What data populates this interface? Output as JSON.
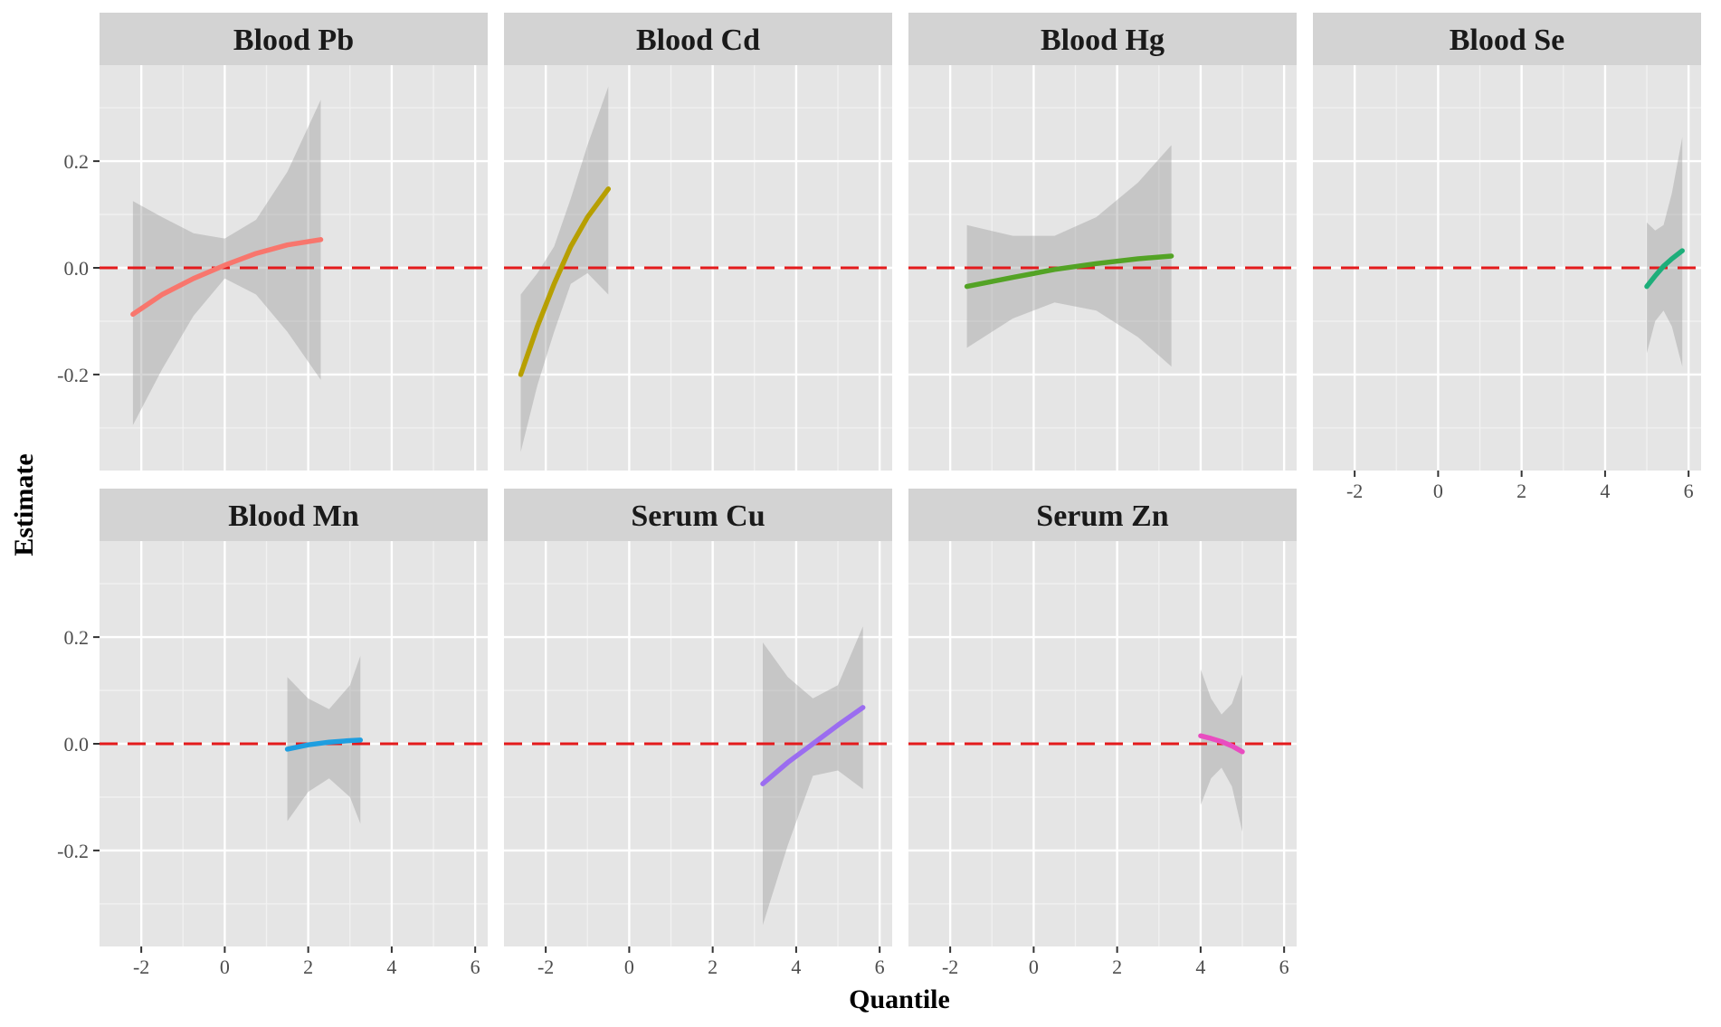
{
  "chart_data": {
    "type": "line",
    "layout": "facet-grid",
    "xlabel": "Quantile",
    "ylabel": "Estimate",
    "xlim": [
      -3,
      6.3
    ],
    "ylim": [
      -0.38,
      0.38
    ],
    "x_ticks": [
      -2,
      0,
      2,
      4,
      6
    ],
    "y_ticks": [
      0.2,
      0.0,
      -0.2
    ],
    "x_tick_labels": [
      "-2",
      "0",
      "2",
      "4",
      "6"
    ],
    "y_tick_labels": [
      "0.2",
      "0.0",
      "-0.2"
    ],
    "reference_line": {
      "y": 0,
      "style": "dashed",
      "color": "#E41A1C"
    },
    "ribbon_color": "#999999",
    "panel_background": "#E5E5E5",
    "strip_background": "#D3D3D3",
    "panels": [
      {
        "title": "Blood Pb",
        "color": "#F8766D",
        "x": [
          -2.2,
          -1.5,
          -0.75,
          0,
          0.75,
          1.5,
          2.3
        ],
        "y": [
          -0.087,
          -0.05,
          -0.02,
          0.005,
          0.027,
          0.043,
          0.053
        ],
        "lower": [
          -0.295,
          -0.19,
          -0.09,
          -0.02,
          -0.05,
          -0.12,
          -0.21
        ],
        "upper": [
          0.125,
          0.095,
          0.065,
          0.055,
          0.09,
          0.18,
          0.315
        ]
      },
      {
        "title": "Blood Cd",
        "color": "#B79F00",
        "x": [
          -2.6,
          -2.2,
          -1.8,
          -1.4,
          -1.0,
          -0.5
        ],
        "y": [
          -0.2,
          -0.11,
          -0.03,
          0.04,
          0.095,
          0.148
        ],
        "lower": [
          -0.345,
          -0.22,
          -0.12,
          -0.03,
          -0.01,
          -0.05
        ],
        "upper": [
          -0.05,
          -0.01,
          0.04,
          0.13,
          0.23,
          0.34
        ]
      },
      {
        "title": "Blood Hg",
        "color": "#53A325",
        "x": [
          -1.6,
          -0.5,
          0.5,
          1.5,
          2.5,
          3.3
        ],
        "y": [
          -0.035,
          -0.018,
          -0.003,
          0.008,
          0.017,
          0.022
        ],
        "lower": [
          -0.15,
          -0.095,
          -0.065,
          -0.08,
          -0.13,
          -0.185
        ],
        "upper": [
          0.08,
          0.06,
          0.06,
          0.095,
          0.16,
          0.23
        ]
      },
      {
        "title": "Blood Se",
        "color": "#1DAE7A",
        "x": [
          5.0,
          5.2,
          5.4,
          5.6,
          5.85
        ],
        "y": [
          -0.035,
          -0.015,
          0.003,
          0.017,
          0.032
        ],
        "lower": [
          -0.16,
          -0.1,
          -0.08,
          -0.11,
          -0.185
        ],
        "upper": [
          0.085,
          0.07,
          0.08,
          0.14,
          0.245
        ]
      },
      {
        "title": "Blood Mn",
        "color": "#1E9EE0",
        "x": [
          1.5,
          2.0,
          2.5,
          3.0,
          3.25
        ],
        "y": [
          -0.01,
          -0.002,
          0.003,
          0.006,
          0.007
        ],
        "lower": [
          -0.145,
          -0.09,
          -0.065,
          -0.1,
          -0.15
        ],
        "upper": [
          0.125,
          0.085,
          0.065,
          0.11,
          0.165
        ]
      },
      {
        "title": "Serum Cu",
        "color": "#9B6DF0",
        "x": [
          3.2,
          3.8,
          4.4,
          5.0,
          5.6
        ],
        "y": [
          -0.075,
          -0.035,
          0.0,
          0.035,
          0.068
        ],
        "lower": [
          -0.34,
          -0.19,
          -0.06,
          -0.05,
          -0.085
        ],
        "upper": [
          0.19,
          0.125,
          0.085,
          0.11,
          0.22
        ]
      },
      {
        "title": "Serum Zn",
        "color": "#E94CC0",
        "x": [
          4.0,
          4.25,
          4.5,
          4.75,
          5.0
        ],
        "y": [
          0.015,
          0.01,
          0.004,
          -0.004,
          -0.015
        ],
        "lower": [
          -0.115,
          -0.065,
          -0.045,
          -0.08,
          -0.165
        ],
        "upper": [
          0.14,
          0.085,
          0.055,
          0.075,
          0.13
        ]
      }
    ]
  }
}
